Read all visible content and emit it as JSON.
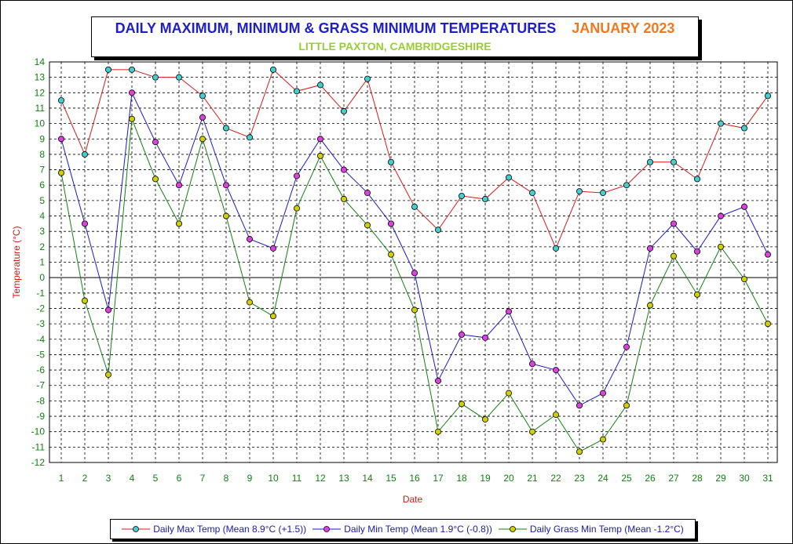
{
  "title": {
    "main": "DAILY MAXIMUM, MINIMUM & GRASS MINIMUM TEMPERATURES",
    "period": "JANUARY 2023",
    "subtitle": "LITTLE PAXTON, CAMBRIDGESHIRE"
  },
  "colors": {
    "max_line": "#d81818",
    "max_marker": "#40d0d0",
    "min_line": "#1818c8",
    "min_marker": "#e040e0",
    "grass_line": "#108010",
    "grass_marker": "#d0d000",
    "axis_text": "#108010",
    "axis_label": "#d81818"
  },
  "chart_data": {
    "type": "line",
    "xlabel": "Date",
    "ylabel": "Temperature (°C)",
    "ylim": [
      -12,
      14
    ],
    "grid": true,
    "legend_position": "bottom",
    "x": [
      1,
      2,
      3,
      4,
      5,
      6,
      7,
      8,
      9,
      10,
      11,
      12,
      13,
      14,
      15,
      16,
      17,
      18,
      19,
      20,
      21,
      22,
      23,
      24,
      25,
      26,
      27,
      28,
      29,
      30,
      31
    ],
    "series": [
      {
        "name": "Daily Max Temp (Mean 8.9°C (+1.5))",
        "values": [
          11.5,
          8.0,
          13.5,
          13.5,
          13.0,
          13.0,
          11.8,
          9.7,
          9.1,
          13.5,
          12.1,
          12.5,
          10.8,
          12.9,
          7.5,
          4.6,
          3.1,
          5.3,
          5.1,
          6.5,
          5.5,
          1.9,
          5.6,
          5.5,
          6.0,
          7.5,
          7.5,
          6.4,
          10.0,
          9.7,
          11.8
        ]
      },
      {
        "name": "Daily Min Temp (Mean 1.9°C (-0.8))",
        "values": [
          9.0,
          3.5,
          -2.1,
          12.0,
          8.8,
          6.0,
          10.4,
          6.0,
          2.5,
          1.9,
          6.6,
          9.0,
          7.0,
          5.5,
          3.5,
          0.3,
          -6.7,
          -3.7,
          -3.9,
          -2.2,
          -5.6,
          -6.0,
          -8.3,
          -7.5,
          -4.5,
          1.9,
          3.5,
          1.7,
          4.0,
          4.6,
          1.5
        ]
      },
      {
        "name": "Daily Grass Min Temp (Mean -1.2°C)",
        "values": [
          6.8,
          -1.5,
          -6.3,
          10.3,
          6.4,
          3.5,
          9.0,
          4.0,
          -1.6,
          -2.5,
          4.5,
          7.9,
          5.1,
          3.4,
          1.5,
          -2.1,
          -10.0,
          -8.2,
          -9.2,
          -7.5,
          -10.0,
          -8.9,
          -11.3,
          -10.5,
          -8.3,
          -1.8,
          1.4,
          -1.1,
          2.0,
          -0.1,
          -3.0
        ]
      }
    ]
  }
}
